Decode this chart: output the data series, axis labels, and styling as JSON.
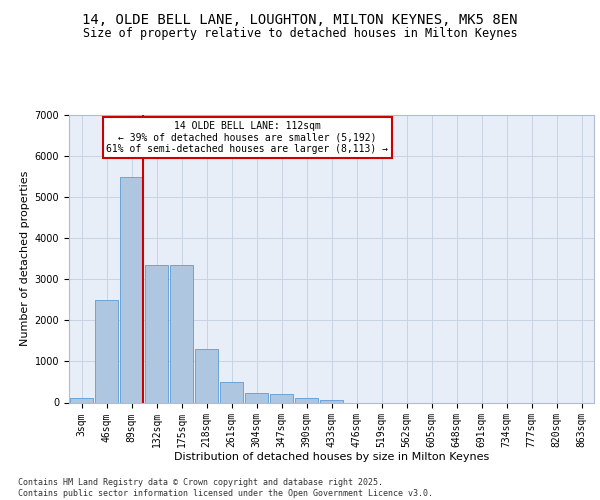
{
  "title_line1": "14, OLDE BELL LANE, LOUGHTON, MILTON KEYNES, MK5 8EN",
  "title_line2": "Size of property relative to detached houses in Milton Keynes",
  "xlabel": "Distribution of detached houses by size in Milton Keynes",
  "ylabel": "Number of detached properties",
  "categories": [
    "3sqm",
    "46sqm",
    "89sqm",
    "132sqm",
    "175sqm",
    "218sqm",
    "261sqm",
    "304sqm",
    "347sqm",
    "390sqm",
    "433sqm",
    "476sqm",
    "519sqm",
    "562sqm",
    "605sqm",
    "648sqm",
    "691sqm",
    "734sqm",
    "777sqm",
    "820sqm",
    "863sqm"
  ],
  "values": [
    100,
    2500,
    5500,
    3350,
    3350,
    1300,
    500,
    230,
    200,
    100,
    50,
    0,
    0,
    0,
    0,
    0,
    0,
    0,
    0,
    0,
    0
  ],
  "bar_color": "#aec6e0",
  "bar_edge_color": "#5b9bd5",
  "vline_xindex": 2.45,
  "vline_color": "#cc0000",
  "annotation_line1": "14 OLDE BELL LANE: 112sqm",
  "annotation_line2": "← 39% of detached houses are smaller (5,192)",
  "annotation_line3": "61% of semi-detached houses are larger (8,113) →",
  "annotation_box_edgecolor": "#cc0000",
  "annotation_box_facecolor": "#ffffff",
  "ylim_min": 0,
  "ylim_max": 7000,
  "yticks": [
    0,
    1000,
    2000,
    3000,
    4000,
    5000,
    6000,
    7000
  ],
  "grid_color": "#c8d4e4",
  "bg_color": "#e8eef8",
  "footer_text": "Contains HM Land Registry data © Crown copyright and database right 2025.\nContains public sector information licensed under the Open Government Licence v3.0.",
  "title_fontsize": 10,
  "subtitle_fontsize": 8.5,
  "axis_label_fontsize": 8,
  "tick_fontsize": 7,
  "annotation_fontsize": 7,
  "footer_fontsize": 6
}
